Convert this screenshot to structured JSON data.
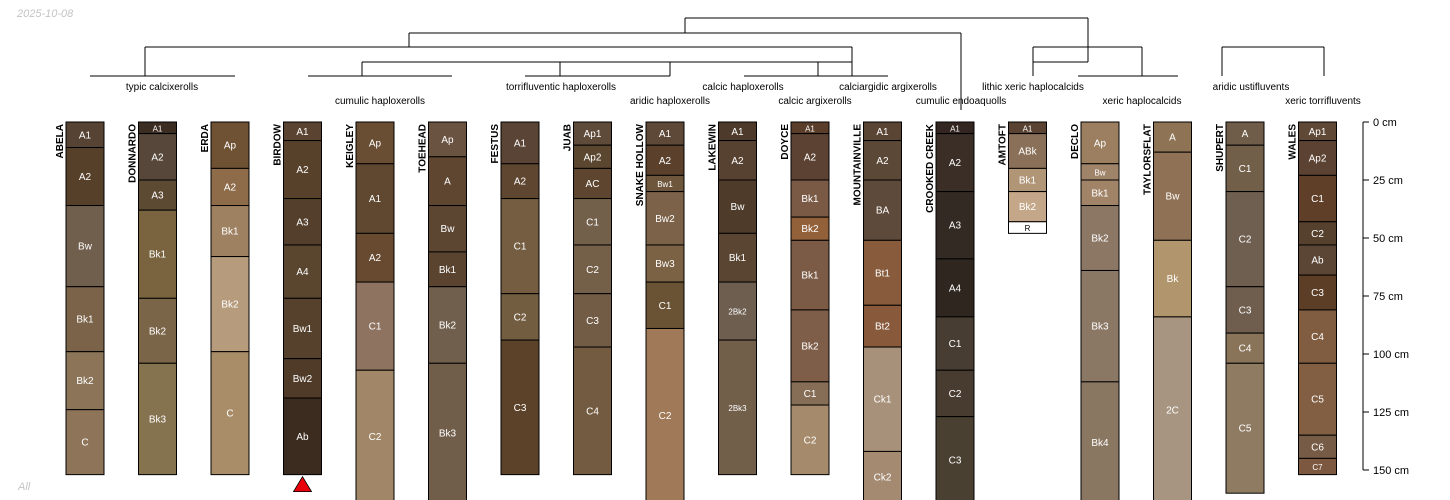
{
  "header_date": "2025-10-08",
  "footer_label": "All",
  "depth_unit": "cm",
  "depth_axis": [
    {
      "value": 0,
      "label": "0 cm"
    },
    {
      "value": 25,
      "label": "25 cm"
    },
    {
      "value": 50,
      "label": "50 cm"
    },
    {
      "value": 75,
      "label": "75 cm"
    },
    {
      "value": 100,
      "label": "100 cm"
    },
    {
      "value": 125,
      "label": "125 cm"
    },
    {
      "value": 150,
      "label": "150 cm"
    }
  ],
  "depth_limit_shown": 165,
  "taxa": [
    "typic calcixerolls",
    "cumulic haploxerolls",
    "torrifluventic haploxerolls",
    "aridic haploxerolls",
    "calcic haploxerolls",
    "calciargidic argixerolls",
    "calcic argixerolls",
    "lithic xeric haplocalcids",
    "cumulic endoaquolls",
    "xeric haplocalcids",
    "aridic ustifluvents",
    "xeric torrifluvents"
  ],
  "profiles": [
    {
      "name": "ABELA",
      "horizons": [
        {
          "name": "A1",
          "top": 0,
          "bottom": 11,
          "color": "#574333"
        },
        {
          "name": "A2",
          "top": 11,
          "bottom": 36,
          "color": "#56402a"
        },
        {
          "name": "Bw",
          "top": 36,
          "bottom": 71,
          "color": "#705f4d"
        },
        {
          "name": "Bk1",
          "top": 71,
          "bottom": 99,
          "color": "#7b6349"
        },
        {
          "name": "Bk2",
          "top": 99,
          "bottom": 124,
          "color": "#8c7458"
        },
        {
          "name": "C",
          "top": 124,
          "bottom": 152,
          "color": "#8e755a"
        }
      ]
    },
    {
      "name": "DONNARDO",
      "horizons": [
        {
          "name": "A1",
          "top": 0,
          "bottom": 5,
          "color": "#3c2d22"
        },
        {
          "name": "A2",
          "top": 5,
          "bottom": 25,
          "color": "#56473a"
        },
        {
          "name": "A3",
          "top": 25,
          "bottom": 38,
          "color": "#5d4a33"
        },
        {
          "name": "Bk1",
          "top": 38,
          "bottom": 76,
          "color": "#79643f"
        },
        {
          "name": "Bk2",
          "top": 76,
          "bottom": 104,
          "color": "#7b6548"
        },
        {
          "name": "Bk3",
          "top": 104,
          "bottom": 152,
          "color": "#85724f"
        }
      ]
    },
    {
      "name": "ERDA",
      "horizons": [
        {
          "name": "Ap",
          "top": 0,
          "bottom": 20,
          "color": "#6f5234"
        },
        {
          "name": "A2",
          "top": 20,
          "bottom": 36,
          "color": "#8e6c4a"
        },
        {
          "name": "Bk1",
          "top": 36,
          "bottom": 58,
          "color": "#9d8160"
        },
        {
          "name": "Bk2",
          "top": 58,
          "bottom": 99,
          "color": "#b69b7d"
        },
        {
          "name": "C",
          "top": 99,
          "bottom": 152,
          "color": "#a88d68"
        }
      ]
    },
    {
      "name": "BIRDOW",
      "bottom_marker": true,
      "horizons": [
        {
          "name": "A1",
          "top": 0,
          "bottom": 8,
          "color": "#5a4330"
        },
        {
          "name": "A2",
          "top": 8,
          "bottom": 33,
          "color": "#57412b"
        },
        {
          "name": "A3",
          "top": 33,
          "bottom": 53,
          "color": "#533f2b"
        },
        {
          "name": "A4",
          "top": 53,
          "bottom": 76,
          "color": "#5a452f"
        },
        {
          "name": "Bw1",
          "top": 76,
          "bottom": 102,
          "color": "#55412c"
        },
        {
          "name": "Bw2",
          "top": 102,
          "bottom": 119,
          "color": "#4f3b28"
        },
        {
          "name": "Ab",
          "top": 119,
          "bottom": 152,
          "color": "#3c2c1f"
        }
      ]
    },
    {
      "name": "KEIGLEY",
      "horizons": [
        {
          "name": "Ap",
          "top": 0,
          "bottom": 18,
          "color": "#6a4e33"
        },
        {
          "name": "A1",
          "top": 18,
          "bottom": 48,
          "color": "#604730"
        },
        {
          "name": "A2",
          "top": 48,
          "bottom": 69,
          "color": "#674a2f"
        },
        {
          "name": "C1",
          "top": 69,
          "bottom": 107,
          "color": "#8f7361"
        },
        {
          "name": "C2",
          "top": 107,
          "bottom": 165,
          "color": "#a18767"
        }
      ]
    },
    {
      "name": "TOEHEAD",
      "horizons": [
        {
          "name": "Ap",
          "top": 0,
          "bottom": 15,
          "color": "#6a5341"
        },
        {
          "name": "A",
          "top": 15,
          "bottom": 36,
          "color": "#5e4630"
        },
        {
          "name": "Bw",
          "top": 36,
          "bottom": 56,
          "color": "#5c4632"
        },
        {
          "name": "Bk1",
          "top": 56,
          "bottom": 71,
          "color": "#5a4430"
        },
        {
          "name": "Bk2",
          "top": 71,
          "bottom": 104,
          "color": "#705f4c"
        },
        {
          "name": "Bk3",
          "top": 104,
          "bottom": 165,
          "color": "#705e4b"
        }
      ]
    },
    {
      "name": "FESTUS",
      "horizons": [
        {
          "name": "A1",
          "top": 0,
          "bottom": 18,
          "color": "#5a4435"
        },
        {
          "name": "A2",
          "top": 18,
          "bottom": 33,
          "color": "#5f4631"
        },
        {
          "name": "C1",
          "top": 33,
          "bottom": 74,
          "color": "#745d41"
        },
        {
          "name": "C2",
          "top": 74,
          "bottom": 94,
          "color": "#735d41"
        },
        {
          "name": "C3",
          "top": 94,
          "bottom": 152,
          "color": "#5c4229"
        }
      ]
    },
    {
      "name": "JUAB",
      "horizons": [
        {
          "name": "Ap1",
          "top": 0,
          "bottom": 10,
          "color": "#5e4b3a"
        },
        {
          "name": "Ap2",
          "top": 10,
          "bottom": 20,
          "color": "#5b4630"
        },
        {
          "name": "AC",
          "top": 20,
          "bottom": 33,
          "color": "#5d4530"
        },
        {
          "name": "C1",
          "top": 33,
          "bottom": 53,
          "color": "#73604a"
        },
        {
          "name": "C2",
          "top": 53,
          "bottom": 74,
          "color": "#745f48"
        },
        {
          "name": "C3",
          "top": 74,
          "bottom": 97,
          "color": "#725c46"
        },
        {
          "name": "C4",
          "top": 97,
          "bottom": 152,
          "color": "#735b42"
        }
      ]
    },
    {
      "name": "SNAKE HOLLOW",
      "horizons": [
        {
          "name": "A1",
          "top": 0,
          "bottom": 10,
          "color": "#5e4838"
        },
        {
          "name": "A2",
          "top": 10,
          "bottom": 23,
          "color": "#5b412c"
        },
        {
          "name": "Bw1",
          "top": 23,
          "bottom": 30,
          "color": "#6e563c"
        },
        {
          "name": "Bw2",
          "top": 30,
          "bottom": 53,
          "color": "#7c6249"
        },
        {
          "name": "Bw3",
          "top": 53,
          "bottom": 69,
          "color": "#7b6245"
        },
        {
          "name": "C1",
          "top": 69,
          "bottom": 89,
          "color": "#6a5234"
        },
        {
          "name": "C2",
          "top": 89,
          "bottom": 165,
          "color": "#a07a58"
        }
      ]
    },
    {
      "name": "LAKEWIN",
      "horizons": [
        {
          "name": "A1",
          "top": 0,
          "bottom": 8,
          "color": "#4e3a2a"
        },
        {
          "name": "A2",
          "top": 8,
          "bottom": 25,
          "color": "#574131"
        },
        {
          "name": "Bw",
          "top": 25,
          "bottom": 48,
          "color": "#4f3b2a"
        },
        {
          "name": "Bk1",
          "top": 48,
          "bottom": 69,
          "color": "#5a4532"
        },
        {
          "name": "2Bk2",
          "top": 69,
          "bottom": 94,
          "color": "#6e5e50"
        },
        {
          "name": "2Bk3",
          "top": 94,
          "bottom": 152,
          "color": "#715f4a"
        }
      ]
    },
    {
      "name": "DOYCE",
      "horizons": [
        {
          "name": "A1",
          "top": 0,
          "bottom": 5,
          "color": "#5a3e2a"
        },
        {
          "name": "A2",
          "top": 5,
          "bottom": 25,
          "color": "#5c4232"
        },
        {
          "name": "Bk1",
          "top": 25,
          "bottom": 41,
          "color": "#7a5a44"
        },
        {
          "name": "Bk2",
          "top": 41,
          "bottom": 51,
          "color": "#92613a"
        },
        {
          "name": "Bk1",
          "top": 51,
          "bottom": 81,
          "color": "#7b5b45"
        },
        {
          "name": "Bk2",
          "top": 81,
          "bottom": 112,
          "color": "#7e5e48"
        },
        {
          "name": "C1",
          "top": 112,
          "bottom": 122,
          "color": "#866d55"
        },
        {
          "name": "C2",
          "top": 122,
          "bottom": 152,
          "color": "#a58b6b"
        }
      ]
    },
    {
      "name": "MOUNTAINVILLE",
      "horizons": [
        {
          "name": "A1",
          "top": 0,
          "bottom": 8,
          "color": "#5a4433"
        },
        {
          "name": "A2",
          "top": 8,
          "bottom": 25,
          "color": "#5c4836"
        },
        {
          "name": "BA",
          "top": 25,
          "bottom": 51,
          "color": "#5e4a3a"
        },
        {
          "name": "Bt1",
          "top": 51,
          "bottom": 79,
          "color": "#875b3b"
        },
        {
          "name": "Bt2",
          "top": 79,
          "bottom": 97,
          "color": "#88593a"
        },
        {
          "name": "Ck1",
          "top": 97,
          "bottom": 142,
          "color": "#a8917a"
        },
        {
          "name": "Ck2",
          "top": 142,
          "bottom": 165,
          "color": "#a38a70"
        }
      ]
    },
    {
      "name": "CROOKED CREEK",
      "horizons": [
        {
          "name": "A1",
          "top": 0,
          "bottom": 5,
          "color": "#332620"
        },
        {
          "name": "A2",
          "top": 5,
          "bottom": 30,
          "color": "#3a2e26"
        },
        {
          "name": "A3",
          "top": 30,
          "bottom": 59,
          "color": "#332a24"
        },
        {
          "name": "A4",
          "top": 59,
          "bottom": 84,
          "color": "#2f2620"
        },
        {
          "name": "C1",
          "top": 84,
          "bottom": 107,
          "color": "#473d32"
        },
        {
          "name": "C2",
          "top": 107,
          "bottom": 127,
          "color": "#483c31"
        },
        {
          "name": "C3",
          "top": 127,
          "bottom": 165,
          "color": "#4a4032"
        }
      ]
    },
    {
      "name": "AMTOFT",
      "horizons": [
        {
          "name": "A1",
          "top": 0,
          "bottom": 5,
          "color": "#5a4332"
        },
        {
          "name": "ABk",
          "top": 5,
          "bottom": 20,
          "color": "#8a7058"
        },
        {
          "name": "Bk1",
          "top": 20,
          "bottom": 30,
          "color": "#b09577"
        },
        {
          "name": "Bk2",
          "top": 30,
          "bottom": 43,
          "color": "#c3a788"
        },
        {
          "name": "R",
          "top": 43,
          "bottom": 48,
          "color": "#ffffff"
        }
      ]
    },
    {
      "name": "DECLO",
      "horizons": [
        {
          "name": "Ap",
          "top": 0,
          "bottom": 18,
          "color": "#9b7f60"
        },
        {
          "name": "Bw",
          "top": 18,
          "bottom": 25,
          "color": "#9f8469"
        },
        {
          "name": "Bk1",
          "top": 25,
          "bottom": 36,
          "color": "#a18467"
        },
        {
          "name": "Bk2",
          "top": 36,
          "bottom": 64,
          "color": "#8c7764"
        },
        {
          "name": "Bk3",
          "top": 64,
          "bottom": 112,
          "color": "#8b7864"
        },
        {
          "name": "Bk4",
          "top": 112,
          "bottom": 165,
          "color": "#8a7762"
        }
      ]
    },
    {
      "name": "TAYLORSFLAT",
      "horizons": [
        {
          "name": "A",
          "top": 0,
          "bottom": 13,
          "color": "#8e7355"
        },
        {
          "name": "Bw",
          "top": 13,
          "bottom": 51,
          "color": "#8f7256"
        },
        {
          "name": "Bk",
          "top": 51,
          "bottom": 84,
          "color": "#b1966d"
        },
        {
          "name": "2C",
          "top": 84,
          "bottom": 165,
          "color": "#a79581"
        }
      ]
    },
    {
      "name": "SHUPERT",
      "horizons": [
        {
          "name": "A",
          "top": 0,
          "bottom": 10,
          "color": "#6f5c49"
        },
        {
          "name": "C1",
          "top": 10,
          "bottom": 30,
          "color": "#725f4a"
        },
        {
          "name": "C2",
          "top": 30,
          "bottom": 71,
          "color": "#6f5f50"
        },
        {
          "name": "C3",
          "top": 71,
          "bottom": 91,
          "color": "#6f5e4d"
        },
        {
          "name": "C4",
          "top": 91,
          "bottom": 104,
          "color": "#8a7459"
        },
        {
          "name": "C5",
          "top": 104,
          "bottom": 160,
          "color": "#8f7a62"
        }
      ]
    },
    {
      "name": "WALES",
      "horizons": [
        {
          "name": "Ap1",
          "top": 0,
          "bottom": 8,
          "color": "#5f4836"
        },
        {
          "name": "Ap2",
          "top": 8,
          "bottom": 23,
          "color": "#5c4232"
        },
        {
          "name": "C1",
          "top": 23,
          "bottom": 43,
          "color": "#5f3f28"
        },
        {
          "name": "C2",
          "top": 43,
          "bottom": 53,
          "color": "#56402e"
        },
        {
          "name": "Ab",
          "top": 53,
          "bottom": 66,
          "color": "#5b4635"
        },
        {
          "name": "C3",
          "top": 66,
          "bottom": 81,
          "color": "#5c3e26"
        },
        {
          "name": "C4",
          "top": 81,
          "bottom": 104,
          "color": "#805d41"
        },
        {
          "name": "C5",
          "top": 104,
          "bottom": 135,
          "color": "#825f43"
        },
        {
          "name": "C6",
          "top": 135,
          "bottom": 145,
          "color": "#765c46"
        },
        {
          "name": "C7",
          "top": 145,
          "bottom": 152,
          "color": "#7c5840"
        }
      ]
    }
  ],
  "colors": {
    "horizon_border": "#000000",
    "tree_line": "#000000",
    "marker": "#e8000b",
    "horizon_label_light": "#ffffff",
    "horizon_label_dark": "#000000"
  }
}
